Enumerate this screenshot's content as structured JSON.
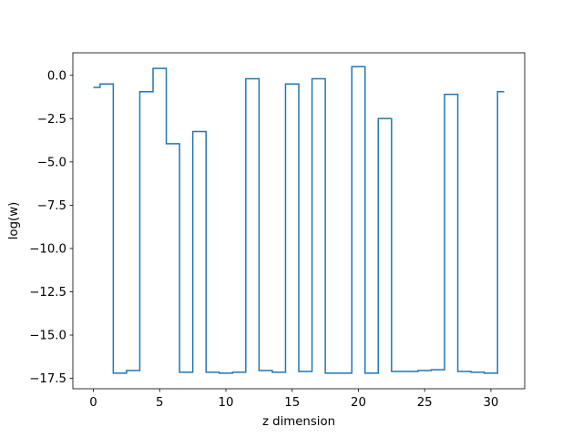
{
  "chart_data": {
    "type": "line",
    "drawstyle": "steps-mid",
    "title": "",
    "xlabel": "z dimension",
    "ylabel": "log(w)",
    "xlim": [
      -1.55,
      32.55
    ],
    "ylim": [
      -18.1,
      1.3
    ],
    "xticks": [
      0,
      5,
      10,
      15,
      20,
      25,
      30
    ],
    "yticks": [
      0.0,
      -2.5,
      -5.0,
      -7.5,
      -10.0,
      -12.5,
      -15.0,
      -17.5
    ],
    "xtick_labels": [
      "0",
      "5",
      "10",
      "15",
      "20",
      "25",
      "30"
    ],
    "ytick_labels": [
      "0.0",
      "−2.5",
      "−5.0",
      "−7.5",
      "−10.0",
      "−12.5",
      "−15.0",
      "−17.5"
    ],
    "grid": false,
    "color": "#1f77b4",
    "x": [
      0,
      1,
      2,
      3,
      4,
      5,
      6,
      7,
      8,
      9,
      10,
      11,
      12,
      13,
      14,
      15,
      16,
      17,
      18,
      19,
      20,
      21,
      22,
      23,
      24,
      25,
      26,
      27,
      28,
      29,
      30,
      31
    ],
    "y": [
      -0.7,
      -0.5,
      -17.2,
      -17.05,
      -0.95,
      0.4,
      -3.95,
      -17.15,
      -3.25,
      -17.15,
      -17.2,
      -17.15,
      -0.2,
      -17.05,
      -17.15,
      -0.5,
      -17.1,
      -0.2,
      -17.2,
      -17.2,
      0.5,
      -17.2,
      -2.5,
      -17.1,
      -17.1,
      -17.05,
      -17.0,
      -1.1,
      -17.1,
      -17.15,
      -17.2,
      -0.95
    ]
  }
}
